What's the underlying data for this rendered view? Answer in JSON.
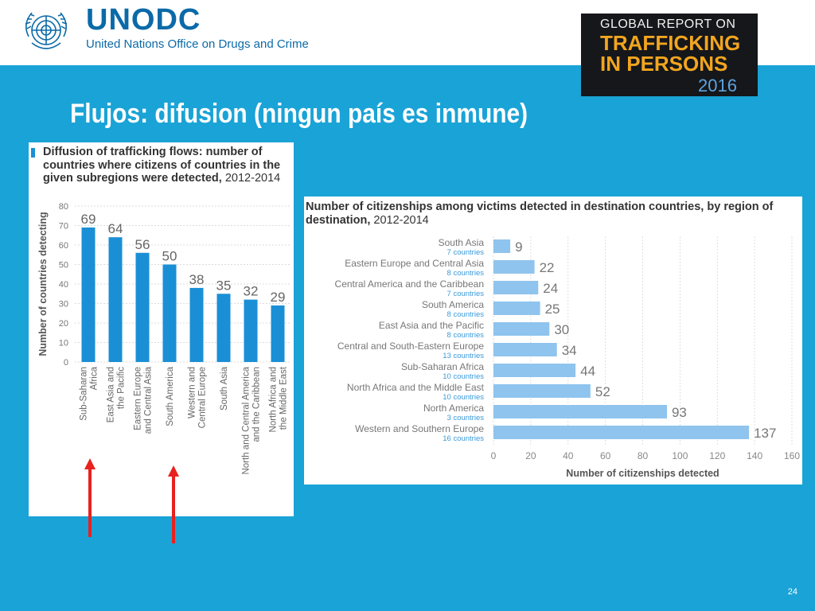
{
  "header": {
    "org_name": "UNODC",
    "org_full": "United Nations Office on Drugs and Crime",
    "report_line1": "GLOBAL REPORT ON",
    "report_line2": "TRAFFICKING",
    "report_line3": "IN PERSONS",
    "report_year": "2016"
  },
  "headline": "Flujos: difusion (ningun país es inmune)",
  "page_number": "24",
  "colors": {
    "background": "#1aa3d6",
    "bar_dark": "#1a8fd6",
    "bar_light": "#8fc4ee",
    "arrow": "#e8211f"
  },
  "chart_data": [
    {
      "type": "bar",
      "title": "Diffusion of trafficking flows: number of countries where citizens of countries in the given subregions were detected,",
      "title_year": "2012-2014",
      "ylabel": "Number of countries detecting",
      "xlabel": "",
      "ylim": [
        0,
        80
      ],
      "yticks": [
        0,
        10,
        20,
        30,
        40,
        50,
        60,
        70,
        80
      ],
      "categories": [
        [
          "Sub-Saharan",
          "Africa"
        ],
        [
          "East Asia and",
          "the Pacific"
        ],
        [
          "Eastern Europe",
          "and Central Asia"
        ],
        [
          "South America"
        ],
        [
          "Western and",
          "Central Europe"
        ],
        [
          "South Asia"
        ],
        [
          "North and Central America",
          "and the Caribbean"
        ],
        [
          "North Africa and",
          "the Middle East"
        ]
      ],
      "values": [
        69,
        64,
        56,
        50,
        38,
        35,
        32,
        29
      ],
      "grid": true,
      "highlighted_categories": [
        "Sub-Saharan Africa",
        "South America"
      ]
    },
    {
      "type": "bar",
      "orientation": "horizontal",
      "title": "Number of citizenships among victims detected in destination countries, by region of destination,",
      "title_year": "2012-2014",
      "xlabel": "Number of citizenships detected",
      "ylabel": "",
      "xlim": [
        0,
        160
      ],
      "xticks": [
        0,
        20,
        40,
        60,
        80,
        100,
        120,
        140,
        160
      ],
      "categories": [
        "South Asia",
        "Eastern Europe and Central Asia",
        "Central America and the Caribbean",
        "South America",
        "East Asia and the Pacific",
        "Central and South-Eastern Europe",
        "Sub-Saharan Africa",
        "North Africa and the Middle East",
        "North America",
        "Western and Southern Europe"
      ],
      "sublabels": [
        "7 countries",
        "8 countries",
        "7 countries",
        "8 countries",
        "8 countries",
        "13 countries",
        "10 countries",
        "10 countries",
        "3 countries",
        "16 countries"
      ],
      "values": [
        9,
        22,
        24,
        25,
        30,
        34,
        44,
        52,
        93,
        137
      ],
      "grid": true
    }
  ]
}
